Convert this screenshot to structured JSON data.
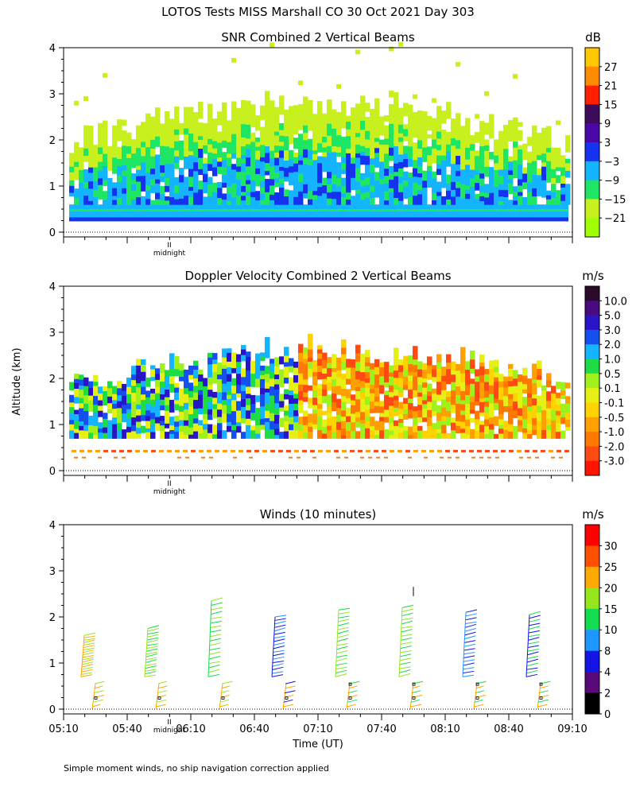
{
  "page": {
    "title": "LOTOS Tests MISS Marshall CO  30 Oct 2021 Day 303",
    "footnote": "Simple moment winds, no ship navigation correction applied",
    "ylabel": "Altitude (km)",
    "xlabel": "Time (UT)",
    "midnight_label": "midnight",
    "midnight_tick": "II"
  },
  "chart_data": [
    {
      "type": "heatmap",
      "title": "SNR Combined 2 Vertical Beams",
      "units": "dB",
      "ylim": [
        0,
        4
      ],
      "yticks": [
        "0",
        "1",
        "2",
        "3",
        "4"
      ],
      "xlim": [
        "05:10",
        "09:10"
      ],
      "colorbar": {
        "labels": [
          "27",
          "21",
          "15",
          "9",
          "3",
          "−3",
          "−9",
          "−15",
          "−21"
        ],
        "colors": [
          "#ffc800",
          "#ff8c00",
          "#ff2000",
          "#3c0c5a",
          "#4b06a8",
          "#1432f0",
          "#14b4ff",
          "#1ee664",
          "#c8f01e",
          "#a0ff00"
        ]
      }
    },
    {
      "type": "heatmap",
      "title": "Doppler Velocity Combined 2 Vertical Beams",
      "units": "m/s",
      "ylim": [
        0,
        4
      ],
      "yticks": [
        "0",
        "1",
        "2",
        "3",
        "4"
      ],
      "xlim": [
        "05:10",
        "09:10"
      ],
      "colorbar": {
        "labels": [
          "10.0",
          "5.0",
          "3.0",
          "2.0",
          "1.0",
          "0.5",
          "0.1",
          "-0.1",
          "-0.5",
          "-1.0",
          "-2.0",
          "-3.0"
        ],
        "colors": [
          "#2a0a2a",
          "#4a0a80",
          "#2a14c8",
          "#1450f0",
          "#14b4ff",
          "#1edc46",
          "#a0f01e",
          "#e6f014",
          "#ffd200",
          "#ffa000",
          "#ff7800",
          "#ff4a14",
          "#ff1400"
        ]
      }
    },
    {
      "type": "barbs",
      "title": "Winds (10 minutes)",
      "units": "m/s",
      "ylim": [
        0,
        4
      ],
      "yticks": [
        "0",
        "1",
        "2",
        "3",
        "4"
      ],
      "xticks": [
        "05:10",
        "05:40",
        "06:10",
        "06:40",
        "07:10",
        "07:40",
        "08:10",
        "08:40",
        "09:10"
      ],
      "profile_times": [
        "05:25",
        "05:55",
        "06:25",
        "06:55",
        "07:25",
        "07:55",
        "08:25",
        "08:55"
      ],
      "colorbar": {
        "labels": [
          "30",
          "25",
          "20",
          "15",
          "10",
          "8",
          "4",
          "2",
          "0"
        ],
        "colors": [
          "#ff0000",
          "#ff5000",
          "#ffaa00",
          "#96e61e",
          "#14dc50",
          "#1e96ff",
          "#1414e6",
          "#5a0a78",
          "#000000"
        ]
      }
    }
  ]
}
